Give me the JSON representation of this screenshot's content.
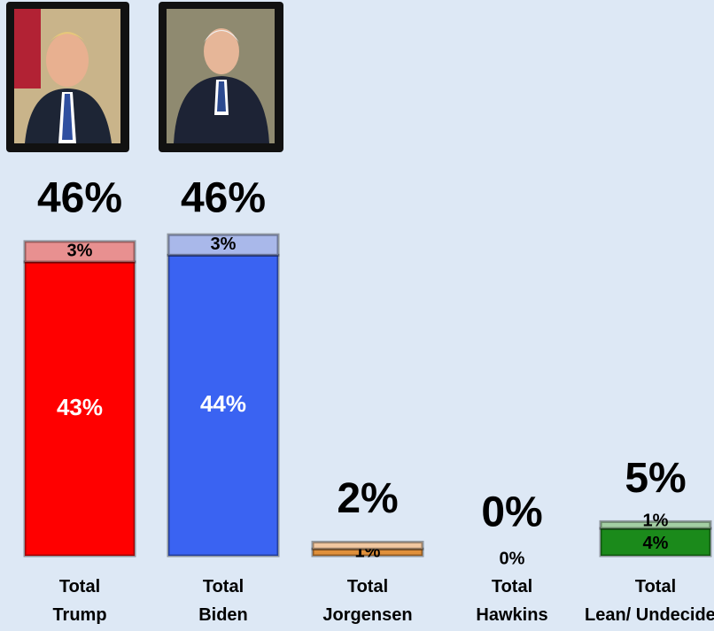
{
  "chart_data": {
    "type": "stacked-bar",
    "categories": [
      "Total Trump",
      "Total Biden",
      "Total Jorgensen",
      "Total Hawkins",
      "Total Lean/ Undecided"
    ],
    "series": [
      {
        "values": [
          43,
          44,
          1,
          0,
          4
        ],
        "value_labels": [
          "43%",
          "44%",
          "1%",
          "0%",
          "4%"
        ],
        "colors": [
          "#ff0000",
          "#3a63f2",
          "#e0903a",
          "#888888",
          "#1b8a1b"
        ]
      },
      {
        "values": [
          3,
          3,
          1,
          0,
          1
        ],
        "value_labels": [
          "3%",
          "3%",
          null,
          null,
          "1%"
        ],
        "colors": [
          "#e89090",
          "#a9b8ea",
          "#f2c8a0",
          "#bbbbbb",
          "#a3cfa3"
        ]
      }
    ],
    "totals": {
      "values": [
        46,
        46,
        2,
        0,
        5
      ],
      "value_labels": [
        "46%",
        "46%",
        "2%",
        "0%",
        "5%"
      ]
    }
  }
}
